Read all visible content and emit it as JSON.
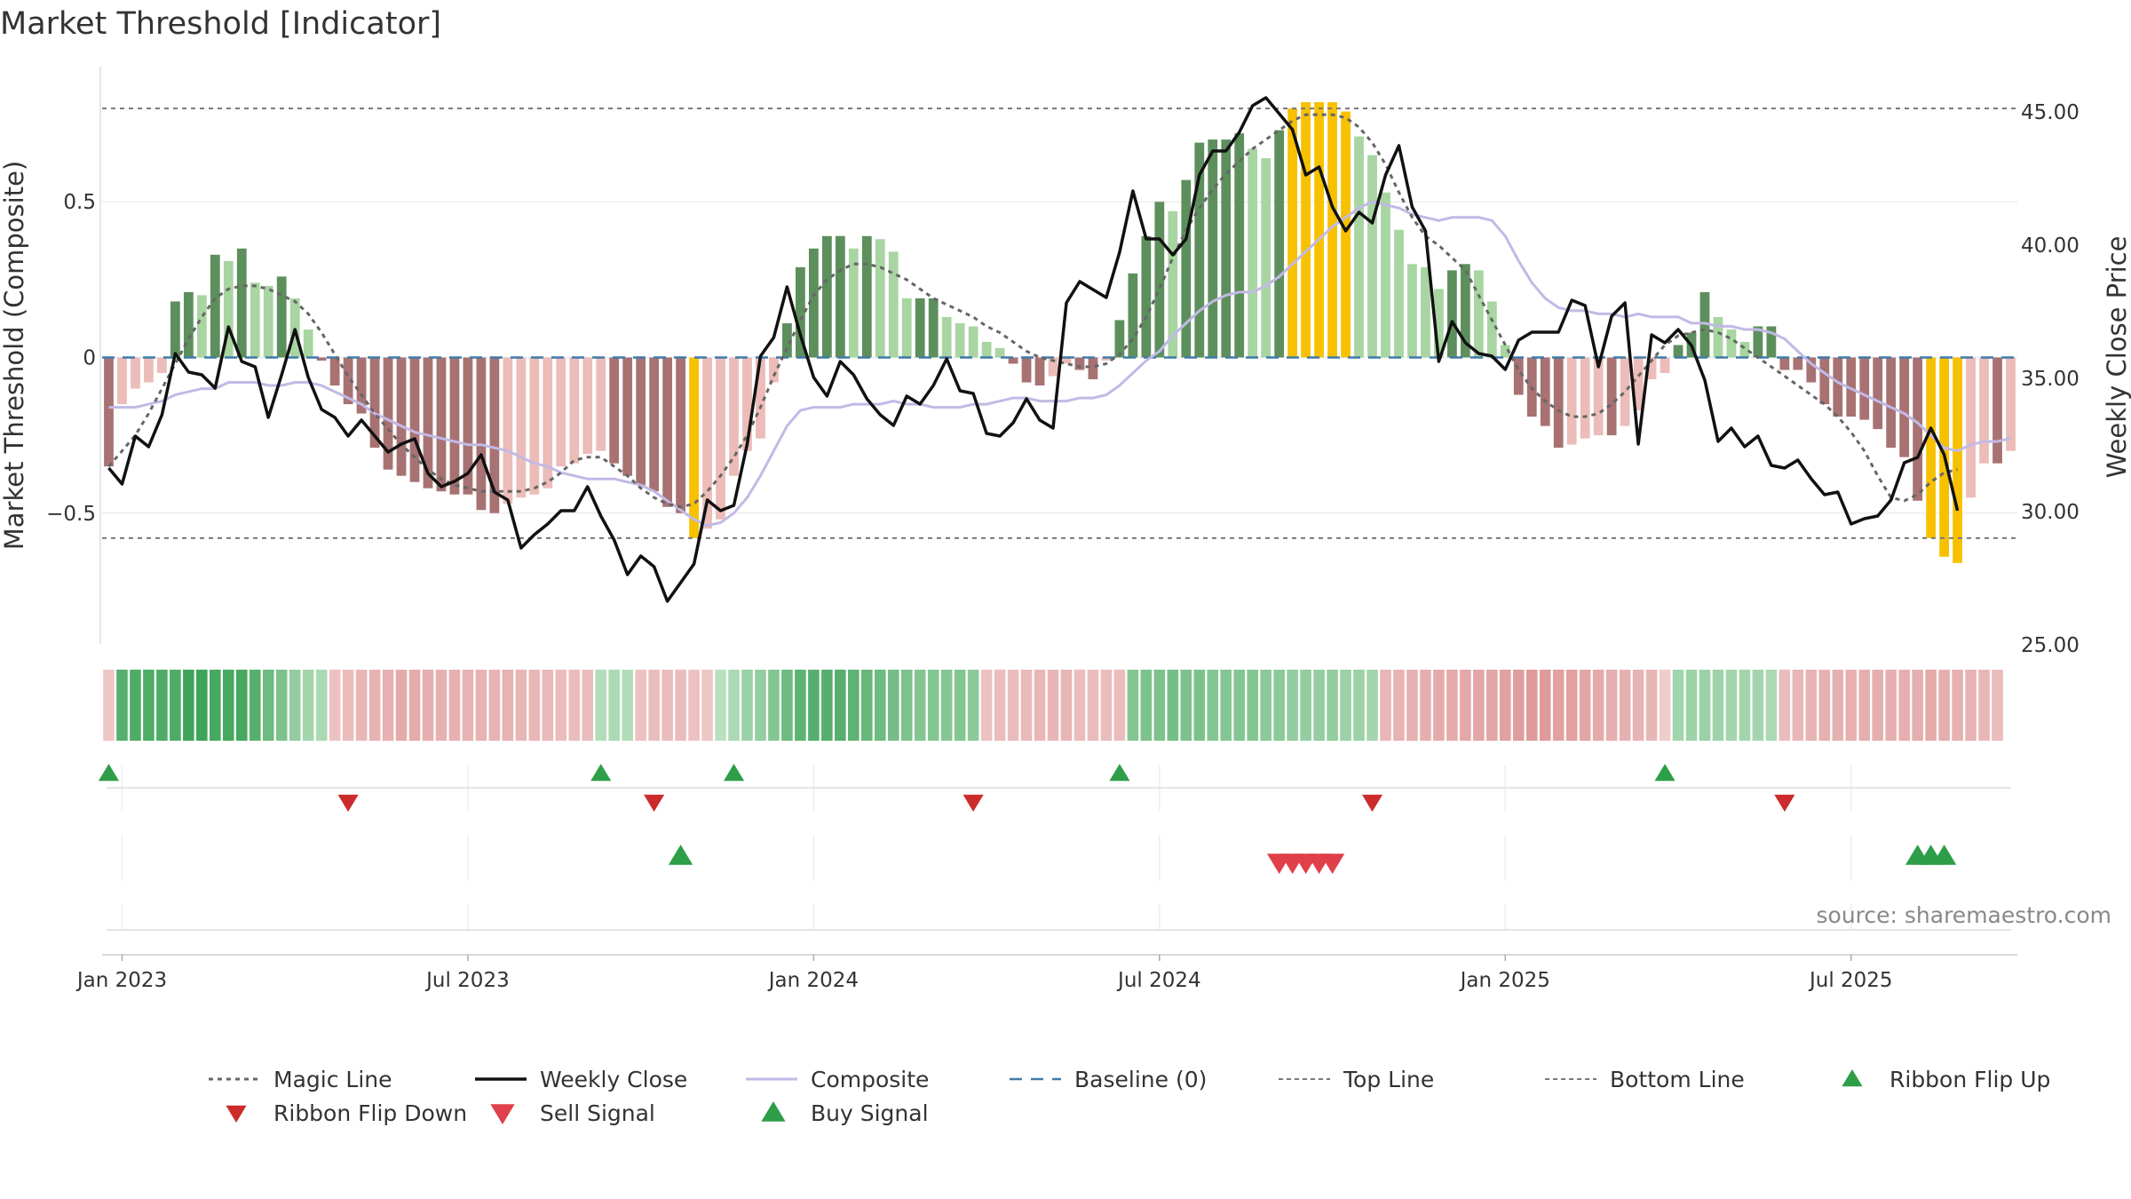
{
  "chart_data": {
    "type": "bar",
    "title": "Market Threshold [Indicator]",
    "ylabel_left": "Market Threshold (Composite)",
    "ylabel_right": "Weekly Close Price",
    "source": "source: sharemaestro.com",
    "y_left_range": [
      -0.92,
      0.92
    ],
    "y_left_ticks": [
      {
        "v": 0.5,
        "label": "0.5"
      },
      {
        "v": 0,
        "label": "0"
      },
      {
        "v": -0.5,
        "label": "−0.5"
      }
    ],
    "y_right_range": [
      25.0,
      46.5
    ],
    "y_right_ticks": [
      {
        "v": 45,
        "label": "45.00"
      },
      {
        "v": 40,
        "label": "40.00"
      },
      {
        "v": 35,
        "label": "35.00"
      },
      {
        "v": 30,
        "label": "30.00"
      },
      {
        "v": 25,
        "label": "25.00"
      }
    ],
    "x_ticks": [
      {
        "week": 1,
        "label": "Jan 2023"
      },
      {
        "week": 27,
        "label": "Jul 2023"
      },
      {
        "week": 53,
        "label": "Jan 2024"
      },
      {
        "week": 79,
        "label": "Jul 2024"
      },
      {
        "week": 105,
        "label": "Jan 2025"
      },
      {
        "week": 131,
        "label": "Jul 2025"
      }
    ],
    "top_line": 0.8,
    "bottom_line": -0.58,
    "baseline": 0,
    "colors": {
      "strong_up": "#5d8f5d",
      "weak_up": "#a8d5a2",
      "strong_down": "#a87272",
      "weak_down": "#ecbcb8",
      "extreme": "#f7c100",
      "magic": "#666666",
      "close": "#111111",
      "composite": "#c2b9e6",
      "baseline": "#3f7aa8",
      "threshold": "#777777",
      "flip_up": "#2e9e48",
      "flip_down": "#cc2b2b",
      "sell": "#e0404a",
      "buy": "#2e9e48"
    },
    "series": [
      {
        "name": "Composite (histogram)",
        "values": [
          -0.35,
          -0.15,
          -0.1,
          -0.08,
          -0.05,
          0.18,
          0.21,
          0.2,
          0.33,
          0.31,
          0.35,
          0.24,
          0.23,
          0.26,
          0.19,
          0.09,
          -0.01,
          -0.09,
          -0.15,
          -0.18,
          -0.29,
          -0.36,
          -0.38,
          -0.4,
          -0.42,
          -0.43,
          -0.44,
          -0.44,
          -0.49,
          -0.5,
          -0.47,
          -0.45,
          -0.44,
          -0.42,
          -0.35,
          -0.34,
          -0.31,
          -0.3,
          -0.34,
          -0.38,
          -0.41,
          -0.43,
          -0.48,
          -0.5,
          -0.58,
          -0.55,
          -0.52,
          -0.38,
          -0.3,
          -0.26,
          -0.08,
          0.11,
          0.29,
          0.35,
          0.39,
          0.39,
          0.35,
          0.39,
          0.38,
          0.34,
          0.19,
          0.19,
          0.19,
          0.13,
          0.11,
          0.1,
          0.05,
          0.03,
          -0.02,
          -0.08,
          -0.09,
          -0.06,
          -0.02,
          -0.04,
          -0.07,
          -0.01,
          0.12,
          0.27,
          0.39,
          0.5,
          0.47,
          0.57,
          0.69,
          0.7,
          0.7,
          0.72,
          0.67,
          0.64,
          0.73,
          0.8,
          0.82,
          0.82,
          0.82,
          0.79,
          0.71,
          0.65,
          0.53,
          0.41,
          0.3,
          0.29,
          0.22,
          0.28,
          0.3,
          0.28,
          0.18,
          0.04,
          -0.12,
          -0.19,
          -0.22,
          -0.29,
          -0.28,
          -0.26,
          -0.25,
          -0.25,
          -0.22,
          -0.17,
          -0.07,
          -0.05,
          0.04,
          0.08,
          0.21,
          0.13,
          0.09,
          0.05,
          0.1,
          0.1,
          -0.04,
          -0.04,
          -0.08,
          -0.15,
          -0.19,
          -0.19,
          -0.2,
          -0.23,
          -0.29,
          -0.32,
          -0.46,
          -0.58,
          -0.64,
          -0.66,
          -0.45,
          -0.34,
          -0.34,
          -0.3
        ]
      },
      {
        "name": "Weekly Close",
        "values": [
          31.6,
          31.0,
          32.8,
          32.4,
          33.6,
          35.9,
          35.2,
          35.1,
          34.6,
          36.9,
          35.6,
          35.4,
          33.5,
          35.1,
          36.8,
          35.0,
          33.8,
          33.5,
          32.8,
          33.4,
          32.8,
          32.2,
          32.5,
          32.7,
          31.4,
          30.9,
          31.1,
          31.4,
          32.1,
          30.7,
          30.4,
          28.6,
          29.1,
          29.5,
          30.0,
          30.0,
          30.9,
          29.8,
          28.9,
          27.6,
          28.3,
          27.9,
          26.6,
          27.3,
          28.0,
          30.4,
          30.0,
          30.2,
          32.5,
          35.8,
          36.5,
          38.4,
          36.6,
          35.0,
          34.3,
          35.6,
          35.1,
          34.2,
          33.6,
          33.2,
          34.3,
          34.0,
          34.7,
          35.7,
          34.5,
          34.4,
          32.9,
          32.8,
          33.3,
          34.2,
          33.4,
          33.1,
          37.8,
          38.6,
          38.3,
          38.0,
          39.7,
          42.0,
          40.2,
          40.2,
          39.6,
          40.2,
          42.6,
          43.5,
          43.5,
          44.2,
          45.2,
          45.5,
          44.9,
          44.3,
          42.6,
          42.9,
          41.4,
          40.5,
          41.2,
          40.8,
          42.6,
          43.7,
          41.4,
          40.5,
          35.6,
          37.1,
          36.3,
          35.9,
          35.8,
          35.3,
          36.4,
          36.7,
          36.7,
          36.7,
          37.9,
          37.7,
          35.4,
          37.3,
          37.8,
          32.5,
          36.6,
          36.3,
          36.8,
          36.2,
          34.9,
          32.6,
          33.1,
          32.4,
          32.8,
          31.7,
          31.6,
          31.9,
          31.2,
          30.6,
          30.7,
          29.5,
          29.7,
          29.8,
          30.4,
          31.8,
          32.0,
          33.1,
          32.1,
          30.0
        ]
      },
      {
        "name": "Magic Line",
        "values": [
          -0.35,
          -0.3,
          -0.25,
          -0.18,
          -0.1,
          -0.02,
          0.06,
          0.13,
          0.19,
          0.22,
          0.23,
          0.23,
          0.22,
          0.2,
          0.18,
          0.14,
          0.08,
          0.01,
          -0.06,
          -0.12,
          -0.18,
          -0.23,
          -0.28,
          -0.32,
          -0.36,
          -0.39,
          -0.41,
          -0.42,
          -0.43,
          -0.43,
          -0.43,
          -0.43,
          -0.42,
          -0.4,
          -0.37,
          -0.33,
          -0.32,
          -0.32,
          -0.35,
          -0.38,
          -0.42,
          -0.45,
          -0.47,
          -0.48,
          -0.47,
          -0.43,
          -0.38,
          -0.32,
          -0.25,
          -0.16,
          -0.06,
          0.03,
          0.12,
          0.2,
          0.25,
          0.28,
          0.3,
          0.3,
          0.29,
          0.27,
          0.25,
          0.22,
          0.19,
          0.17,
          0.15,
          0.13,
          0.1,
          0.08,
          0.05,
          0.02,
          0.0,
          -0.01,
          -0.02,
          -0.03,
          -0.03,
          -0.02,
          0.01,
          0.06,
          0.13,
          0.22,
          0.32,
          0.41,
          0.48,
          0.54,
          0.59,
          0.63,
          0.67,
          0.7,
          0.73,
          0.76,
          0.78,
          0.78,
          0.78,
          0.77,
          0.74,
          0.69,
          0.62,
          0.53,
          0.45,
          0.39,
          0.36,
          0.32,
          0.28,
          0.2,
          0.12,
          0.04,
          -0.04,
          -0.1,
          -0.14,
          -0.17,
          -0.19,
          -0.19,
          -0.18,
          -0.15,
          -0.11,
          -0.06,
          -0.01,
          0.04,
          0.07,
          0.08,
          0.09,
          0.08,
          0.06,
          0.03,
          0.0,
          -0.03,
          -0.06,
          -0.09,
          -0.12,
          -0.15,
          -0.19,
          -0.24,
          -0.3,
          -0.38,
          -0.45,
          -0.46,
          -0.44,
          -0.4,
          -0.37,
          -0.36
        ]
      },
      {
        "name": "Composite",
        "values": [
          -0.16,
          -0.16,
          -0.16,
          -0.15,
          -0.14,
          -0.12,
          -0.11,
          -0.1,
          -0.1,
          -0.08,
          -0.08,
          -0.08,
          -0.09,
          -0.09,
          -0.08,
          -0.08,
          -0.09,
          -0.11,
          -0.13,
          -0.15,
          -0.18,
          -0.2,
          -0.22,
          -0.24,
          -0.25,
          -0.26,
          -0.27,
          -0.28,
          -0.28,
          -0.29,
          -0.3,
          -0.32,
          -0.34,
          -0.35,
          -0.37,
          -0.38,
          -0.39,
          -0.39,
          -0.39,
          -0.4,
          -0.41,
          -0.43,
          -0.46,
          -0.49,
          -0.52,
          -0.54,
          -0.53,
          -0.5,
          -0.45,
          -0.38,
          -0.3,
          -0.22,
          -0.17,
          -0.16,
          -0.16,
          -0.16,
          -0.15,
          -0.15,
          -0.15,
          -0.14,
          -0.15,
          -0.15,
          -0.16,
          -0.16,
          -0.16,
          -0.15,
          -0.15,
          -0.14,
          -0.13,
          -0.13,
          -0.14,
          -0.14,
          -0.14,
          -0.13,
          -0.13,
          -0.12,
          -0.09,
          -0.05,
          -0.01,
          0.02,
          0.07,
          0.11,
          0.15,
          0.18,
          0.2,
          0.21,
          0.21,
          0.23,
          0.26,
          0.3,
          0.34,
          0.38,
          0.42,
          0.45,
          0.48,
          0.5,
          0.49,
          0.48,
          0.46,
          0.45,
          0.44,
          0.45,
          0.45,
          0.45,
          0.44,
          0.39,
          0.31,
          0.24,
          0.19,
          0.16,
          0.15,
          0.15,
          0.14,
          0.14,
          0.13,
          0.14,
          0.13,
          0.13,
          0.13,
          0.11,
          0.11,
          0.1,
          0.1,
          0.09,
          0.09,
          0.08,
          0.06,
          0.02,
          -0.02,
          -0.05,
          -0.08,
          -0.1,
          -0.12,
          -0.14,
          -0.16,
          -0.18,
          -0.21,
          -0.25,
          -0.29,
          -0.3,
          -0.28,
          -0.27,
          -0.27,
          -0.26
        ]
      }
    ],
    "ribbon": [
      -0.2,
      0.85,
      0.9,
      0.9,
      0.9,
      0.9,
      1.0,
      1.0,
      0.95,
      0.95,
      0.95,
      0.85,
      0.7,
      0.6,
      0.45,
      0.35,
      0.3,
      -0.25,
      -0.3,
      -0.35,
      -0.38,
      -0.4,
      -0.45,
      -0.45,
      -0.42,
      -0.4,
      -0.4,
      -0.38,
      -0.38,
      -0.38,
      -0.38,
      -0.35,
      -0.35,
      -0.32,
      -0.3,
      -0.3,
      -0.3,
      0.25,
      0.3,
      0.25,
      -0.25,
      -0.3,
      -0.3,
      -0.3,
      -0.25,
      -0.2,
      0.2,
      0.3,
      0.4,
      0.45,
      0.55,
      0.7,
      0.8,
      0.85,
      0.85,
      0.85,
      0.8,
      0.75,
      0.7,
      0.65,
      0.6,
      0.55,
      0.55,
      0.55,
      0.55,
      0.5,
      -0.25,
      -0.3,
      -0.3,
      -0.32,
      -0.35,
      -0.35,
      -0.35,
      -0.3,
      -0.3,
      -0.3,
      -0.3,
      0.55,
      0.6,
      0.6,
      0.65,
      0.6,
      0.6,
      0.55,
      0.55,
      0.55,
      0.55,
      0.5,
      0.5,
      0.45,
      0.45,
      0.45,
      0.45,
      0.4,
      0.4,
      0.35,
      -0.35,
      -0.38,
      -0.4,
      -0.42,
      -0.45,
      -0.45,
      -0.48,
      -0.5,
      -0.5,
      -0.55,
      -0.58,
      -0.6,
      -0.6,
      -0.55,
      -0.55,
      -0.5,
      -0.45,
      -0.42,
      -0.4,
      -0.38,
      -0.35,
      -0.15,
      0.35,
      0.38,
      0.4,
      0.38,
      0.35,
      0.35,
      0.35,
      0.3,
      -0.3,
      -0.35,
      -0.38,
      -0.4,
      -0.4,
      -0.4,
      -0.42,
      -0.42,
      -0.42,
      -0.42,
      -0.42,
      -0.45,
      -0.42,
      -0.4,
      -0.38,
      -0.35,
      -0.3
    ],
    "ribbon_flip_up_weeks": [
      0,
      37,
      47,
      76,
      117
    ],
    "ribbon_flip_down_weeks": [
      18,
      41,
      65,
      95,
      126
    ],
    "buy_signal_weeks": [
      43,
      136,
      137,
      138
    ],
    "sell_signal_weeks": [
      88,
      89,
      90,
      91,
      92
    ],
    "legend": [
      {
        "label": "Magic Line",
        "key": "magic"
      },
      {
        "label": "Weekly Close",
        "key": "close"
      },
      {
        "label": "Composite",
        "key": "composite"
      },
      {
        "label": "Baseline (0)",
        "key": "baseline"
      },
      {
        "label": "Top Line",
        "key": "top"
      },
      {
        "label": "Bottom Line",
        "key": "bottom"
      },
      {
        "label": "Ribbon Flip Up",
        "key": "flipup"
      },
      {
        "label": "Ribbon Flip Down",
        "key": "flipdown"
      },
      {
        "label": "Sell Signal",
        "key": "sell"
      },
      {
        "label": "Buy Signal",
        "key": "buy"
      }
    ]
  }
}
